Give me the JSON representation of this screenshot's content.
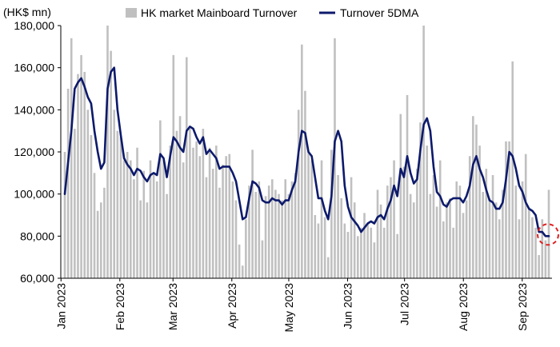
{
  "chart_data": {
    "type": "bar+line",
    "y_unit_label": "(HK$ mn)",
    "ylim": [
      60000,
      180000
    ],
    "yticks": [
      60000,
      80000,
      100000,
      120000,
      140000,
      160000,
      180000
    ],
    "ytick_labels": [
      "60,000",
      "80,000",
      "100,000",
      "120,000",
      "140,000",
      "160,000",
      "180,000"
    ],
    "x_start": "2023-01-03",
    "x_end": "2023-09-15",
    "xtick_labels": [
      "Jan 2023",
      "Feb 2023",
      "Mar 2023",
      "Apr 2023",
      "May 2023",
      "Jun 2023",
      "Jul 2023",
      "Aug 2023",
      "Sep 2023"
    ],
    "xtick_dates": [
      "2023-01-01",
      "2023-02-01",
      "2023-03-01",
      "2023-04-01",
      "2023-05-01",
      "2023-06-01",
      "2023-07-01",
      "2023-08-01",
      "2023-09-01"
    ],
    "legend_position": "top",
    "grid": false,
    "series": [
      {
        "name": "HK market Mainboard Turnover",
        "type": "bar",
        "color": "#c0c0c0",
        "values": [
          120000,
          150000,
          174000,
          131000,
          157000,
          166000,
          158000,
          140000,
          128000,
          110000,
          92000,
          96000,
          103000,
          180000,
          168000,
          140000,
          130000,
          127000,
          116000,
          120000,
          116000,
          107000,
          122000,
          97000,
          111000,
          96000,
          116000,
          110000,
          106000,
          135000,
          116000,
          100000,
          123000,
          166000,
          130000,
          137000,
          115000,
          165000,
          131000,
          122000,
          125000,
          118000,
          131000,
          108000,
          122000,
          112000,
          123000,
          103000,
          114000,
          118000,
          119000,
          106000,
          97000,
          76000,
          66000,
          88000,
          104000,
          121000,
          101000,
          106000,
          78000,
          99000,
          104000,
          107000,
          102000,
          100000,
          97000,
          107000,
          100000,
          106000,
          110000,
          140000,
          171000,
          149000,
          120000,
          116000,
          90000,
          86000,
          116000,
          89000,
          70000,
          121000,
          174000,
          109000,
          98000,
          86000,
          82000,
          108000,
          96000,
          80000,
          84000,
          91000,
          86000,
          84000,
          77000,
          102000,
          95000,
          84000,
          104000,
          108000,
          116000,
          81000,
          138000,
          113000,
          147000,
          100000,
          96000,
          112000,
          134000,
          180000,
          123000,
          100000,
          109000,
          94000,
          116000,
          87000,
          96000,
          98000,
          84000,
          106000,
          104000,
          91000,
          97000,
          118000,
          137000,
          133000,
          123000,
          101000,
          112000,
          98000,
          109000,
          96000,
          88000,
          102000,
          125000,
          125000,
          163000,
          104000,
          88000,
          106000,
          119000,
          93000,
          89000,
          84000,
          71000,
          88000,
          78000,
          102000
        ]
      },
      {
        "name": "Turnover 5DMA",
        "type": "line",
        "color": "#0d1a6b",
        "values": [
          100000,
          115000,
          130000,
          150000,
          153000,
          155000,
          151000,
          146000,
          143000,
          130000,
          120000,
          112000,
          115000,
          150000,
          158000,
          160000,
          140000,
          128000,
          117000,
          114000,
          112000,
          109000,
          112000,
          111000,
          108000,
          106000,
          109000,
          110000,
          109000,
          119000,
          117000,
          108000,
          118000,
          127000,
          125000,
          122000,
          120000,
          130000,
          132000,
          131000,
          127000,
          124000,
          127000,
          119000,
          121000,
          119000,
          117000,
          112000,
          113000,
          113000,
          113000,
          110000,
          106000,
          97000,
          88000,
          89000,
          98000,
          106000,
          105000,
          103000,
          97000,
          96000,
          96000,
          98000,
          97000,
          97000,
          95000,
          97000,
          97000,
          102000,
          106000,
          120000,
          130000,
          129000,
          120000,
          118000,
          108000,
          98000,
          98000,
          92000,
          88000,
          99000,
          125000,
          130000,
          125000,
          104000,
          94000,
          89000,
          87000,
          85000,
          82000,
          84000,
          86000,
          87000,
          86000,
          89000,
          90000,
          88000,
          93000,
          97000,
          104000,
          99000,
          112000,
          108000,
          118000,
          110000,
          105000,
          107000,
          121000,
          133000,
          136000,
          130000,
          113000,
          101000,
          99000,
          95000,
          94000,
          97000,
          98000,
          98000,
          98000,
          96000,
          99000,
          104000,
          114000,
          118000,
          112000,
          108000,
          102000,
          97000,
          96000,
          93000,
          93000,
          96000,
          107000,
          120000,
          118000,
          112000,
          104000,
          101000,
          96000,
          93000,
          92000,
          90000,
          82000,
          82000,
          80000,
          80000
        ]
      }
    ],
    "annotation": {
      "type": "dashed-circle",
      "color": "#e02020",
      "target": "last point of Turnover 5DMA"
    }
  }
}
